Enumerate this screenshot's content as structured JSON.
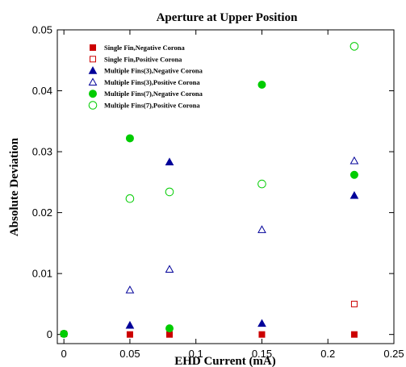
{
  "chart_data": {
    "type": "scatter",
    "title": "Aperture at Upper Position",
    "xlabel": "EHD Current (mA)",
    "ylabel": "Absolute Deviation",
    "xlim": [
      -0.005,
      0.25
    ],
    "ylim": [
      -0.0015,
      0.05
    ],
    "x_ticks": [
      0,
      0.05,
      0.1,
      0.15,
      0.2,
      0.25
    ],
    "x_tick_labels": [
      "0",
      "0.05",
      "0.1",
      "0.15",
      "0.2",
      "0.25"
    ],
    "y_ticks": [
      0,
      0.01,
      0.02,
      0.03,
      0.04,
      0.05
    ],
    "y_tick_labels": [
      "0",
      "0.01",
      "0.02",
      "0.03",
      "0.04",
      "0.05"
    ],
    "grid": false,
    "legend_position": "top-left",
    "series": [
      {
        "name": "Single Fin,Negative Corona",
        "marker": "square",
        "filled": true,
        "color": "#cc0000",
        "points": [
          [
            0,
            0.0001
          ],
          [
            0.05,
            0
          ],
          [
            0.08,
            0
          ],
          [
            0.15,
            0
          ],
          [
            0.22,
            0
          ]
        ]
      },
      {
        "name": "Single Fin,Positive Corona",
        "marker": "square",
        "filled": false,
        "color": "#cc0000",
        "points": [
          [
            0.22,
            0.005
          ]
        ]
      },
      {
        "name": "Multiple Fins(3),Negative Corona",
        "marker": "triangle",
        "filled": true,
        "color": "#000099",
        "points": [
          [
            0.05,
            0.0015
          ],
          [
            0.08,
            0.0283
          ],
          [
            0.15,
            0.0018
          ],
          [
            0.22,
            0.0228
          ]
        ]
      },
      {
        "name": "Multiple Fins(3),Positive Corona",
        "marker": "triangle",
        "filled": false,
        "color": "#000099",
        "points": [
          [
            0.05,
            0.0073
          ],
          [
            0.08,
            0.0107
          ],
          [
            0.15,
            0.0172
          ],
          [
            0.22,
            0.0285
          ]
        ]
      },
      {
        "name": "Multiple Fins(7),Negative Corona",
        "marker": "circle",
        "filled": true,
        "color": "#00cc00",
        "points": [
          [
            0,
            0.0001
          ],
          [
            0.05,
            0.0322
          ],
          [
            0.08,
            0.001
          ],
          [
            0.15,
            0.041
          ],
          [
            0.22,
            0.0262
          ]
        ]
      },
      {
        "name": "Multiple Fins(7),Positive Corona",
        "marker": "circle",
        "filled": false,
        "color": "#00cc00",
        "points": [
          [
            0.05,
            0.0223
          ],
          [
            0.08,
            0.0234
          ],
          [
            0.15,
            0.0247
          ],
          [
            0.22,
            0.0473
          ]
        ]
      }
    ]
  }
}
